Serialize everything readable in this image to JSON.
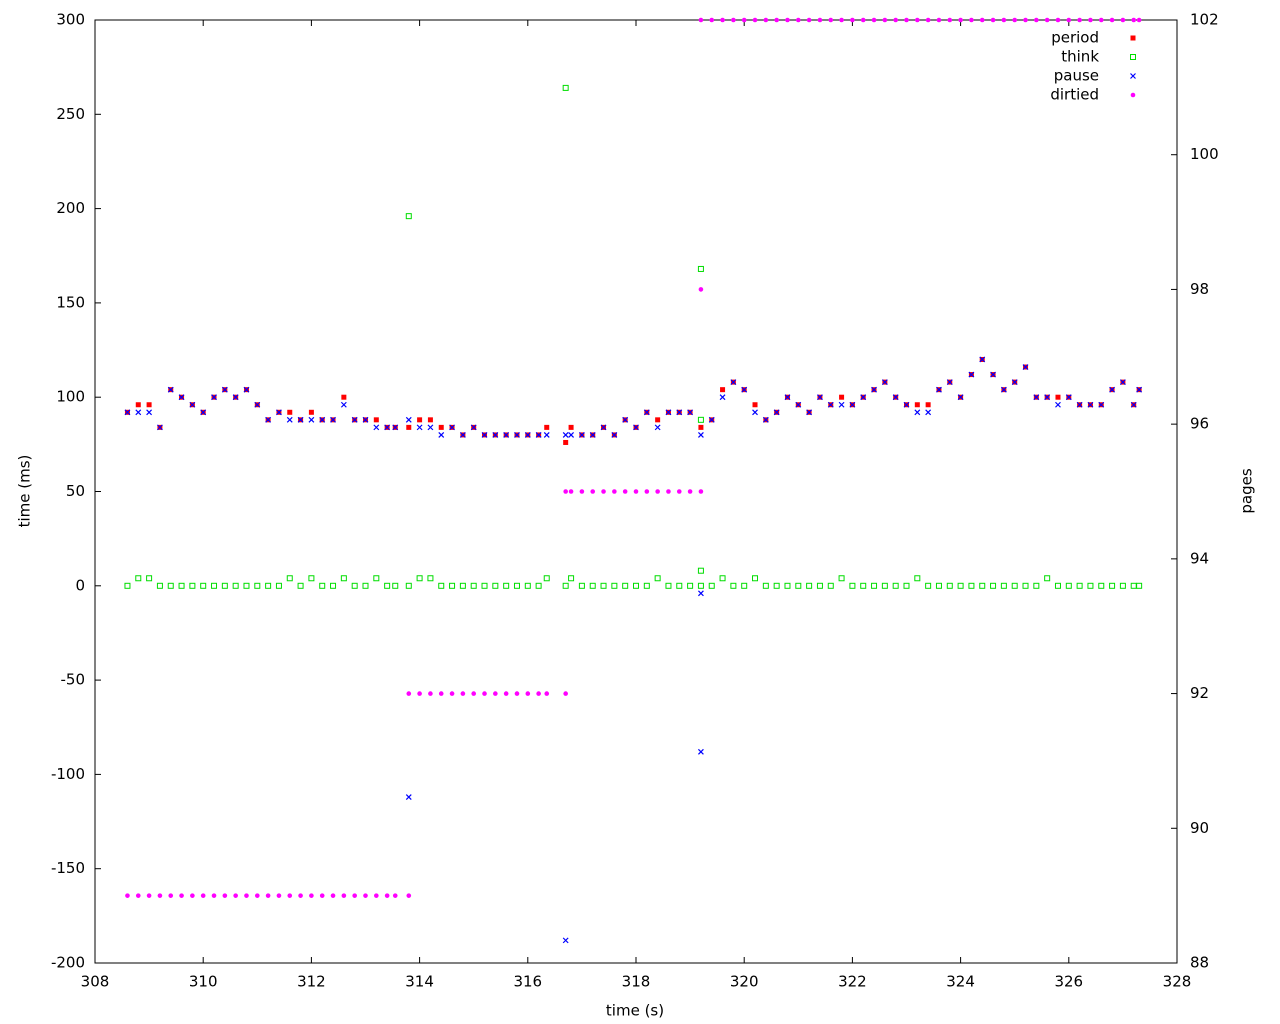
{
  "chart_data": {
    "type": "scatter",
    "xlabel": "time (s)",
    "ylabel": "time (ms)",
    "y2label": "pages",
    "xlim": [
      308,
      328
    ],
    "xticks": [
      308,
      310,
      312,
      314,
      316,
      318,
      320,
      322,
      324,
      326,
      328
    ],
    "ylim": [
      -200,
      300
    ],
    "yticks": [
      -200,
      -150,
      -100,
      -50,
      0,
      50,
      100,
      150,
      200,
      250,
      300
    ],
    "y2lim": [
      88,
      102
    ],
    "y2ticks": [
      88,
      90,
      92,
      94,
      96,
      98,
      100,
      102
    ],
    "grid": false,
    "legend": "top-right",
    "series": [
      {
        "name": "period",
        "color": "#ff0000",
        "marker": "filled-square",
        "x": [
          308.6,
          308.8,
          309.0,
          309.2,
          309.4,
          309.6,
          309.8,
          310.0,
          310.2,
          310.4,
          310.6,
          310.8,
          311.0,
          311.2,
          311.4,
          311.6,
          311.8,
          312.0,
          312.2,
          312.4,
          312.6,
          312.8,
          313.0,
          313.2,
          313.4,
          313.55,
          313.8,
          314.0,
          314.2,
          314.4,
          314.6,
          314.8,
          315.0,
          315.2,
          315.4,
          315.6,
          315.8,
          316.0,
          316.2,
          316.35,
          316.7,
          316.8,
          317.0,
          317.2,
          317.4,
          317.6,
          317.8,
          318.0,
          318.2,
          318.4,
          318.6,
          318.8,
          319.0,
          319.2,
          319.4,
          319.6,
          319.8,
          320.0,
          320.2,
          320.4,
          320.6,
          320.8,
          321.0,
          321.2,
          321.4,
          321.6,
          321.8,
          322.0,
          322.2,
          322.4,
          322.6,
          322.8,
          323.0,
          323.2,
          323.4,
          323.6,
          323.8,
          324.0,
          324.2,
          324.4,
          324.6,
          324.8,
          325.0,
          325.2,
          325.4,
          325.6,
          325.8,
          326.0,
          326.2,
          326.4,
          326.6,
          326.8,
          327.0,
          327.2,
          327.3
        ],
        "values": [
          92,
          96,
          96,
          84,
          104,
          100,
          96,
          92,
          100,
          104,
          100,
          104,
          96,
          88,
          92,
          92,
          88,
          92,
          88,
          88,
          100,
          88,
          88,
          88,
          84,
          84,
          84,
          88,
          88,
          84,
          84,
          80,
          84,
          80,
          80,
          80,
          80,
          80,
          80,
          84,
          76,
          84,
          80,
          80,
          84,
          80,
          88,
          84,
          92,
          88,
          92,
          92,
          92,
          84,
          88,
          104,
          108,
          104,
          96,
          88,
          92,
          100,
          96,
          92,
          100,
          96,
          100,
          96,
          100,
          104,
          108,
          100,
          96,
          96,
          96,
          104,
          108,
          100,
          112,
          120,
          112,
          104,
          108,
          116,
          100,
          100,
          100,
          100,
          96,
          96,
          96,
          104,
          108,
          96,
          104
        ]
      },
      {
        "name": "think",
        "color": "#00dd00",
        "marker": "open-square",
        "x": [
          308.6,
          308.8,
          309.0,
          309.2,
          309.4,
          309.6,
          309.8,
          310.0,
          310.2,
          310.4,
          310.6,
          310.8,
          311.0,
          311.2,
          311.4,
          311.6,
          311.8,
          312.0,
          312.2,
          312.4,
          312.6,
          312.8,
          313.0,
          313.2,
          313.4,
          313.55,
          313.8,
          314.0,
          314.2,
          314.4,
          314.6,
          314.8,
          315.0,
          315.2,
          315.4,
          315.6,
          315.8,
          316.0,
          316.2,
          316.35,
          316.7,
          316.8,
          317.0,
          317.2,
          317.4,
          317.6,
          317.8,
          318.0,
          318.2,
          318.4,
          318.6,
          318.8,
          319.0,
          319.2,
          319.4,
          319.6,
          319.8,
          320.0,
          320.2,
          320.4,
          320.6,
          320.8,
          321.0,
          321.2,
          321.4,
          321.6,
          321.8,
          322.0,
          322.2,
          322.4,
          322.6,
          322.8,
          323.0,
          323.2,
          323.4,
          323.6,
          323.8,
          324.0,
          324.2,
          324.4,
          324.6,
          324.8,
          325.0,
          325.2,
          325.4,
          325.6,
          325.8,
          326.0,
          326.2,
          326.4,
          326.6,
          326.8,
          327.0,
          327.2,
          327.3,
          313.8,
          316.7,
          319.2,
          319.2,
          319.2
        ],
        "values": [
          0,
          4,
          4,
          0,
          0,
          0,
          0,
          0,
          0,
          0,
          0,
          0,
          0,
          0,
          0,
          4,
          0,
          4,
          0,
          0,
          4,
          0,
          0,
          4,
          0,
          0,
          0,
          4,
          4,
          0,
          0,
          0,
          0,
          0,
          0,
          0,
          0,
          0,
          0,
          4,
          0,
          4,
          0,
          0,
          0,
          0,
          0,
          0,
          0,
          4,
          0,
          0,
          0,
          0,
          0,
          4,
          0,
          0,
          4,
          0,
          0,
          0,
          0,
          0,
          0,
          0,
          4,
          0,
          0,
          0,
          0,
          0,
          0,
          4,
          0,
          0,
          0,
          0,
          0,
          0,
          0,
          0,
          0,
          0,
          0,
          4,
          0,
          0,
          0,
          0,
          0,
          0,
          0,
          0,
          0,
          196,
          264,
          168,
          8,
          88
        ]
      },
      {
        "name": "pause",
        "color": "#0000ff",
        "marker": "cross",
        "x": [
          308.6,
          308.8,
          309.0,
          309.2,
          309.4,
          309.6,
          309.8,
          310.0,
          310.2,
          310.4,
          310.6,
          310.8,
          311.0,
          311.2,
          311.4,
          311.6,
          311.8,
          312.0,
          312.2,
          312.4,
          312.6,
          312.8,
          313.0,
          313.2,
          313.4,
          313.55,
          313.8,
          314.0,
          314.2,
          314.4,
          314.6,
          314.8,
          315.0,
          315.2,
          315.4,
          315.6,
          315.8,
          316.0,
          316.2,
          316.35,
          316.7,
          316.8,
          317.0,
          317.2,
          317.4,
          317.6,
          317.8,
          318.0,
          318.2,
          318.4,
          318.6,
          318.8,
          319.0,
          319.2,
          319.4,
          319.6,
          319.8,
          320.0,
          320.2,
          320.4,
          320.6,
          320.8,
          321.0,
          321.2,
          321.4,
          321.6,
          321.8,
          322.0,
          322.2,
          322.4,
          322.6,
          322.8,
          323.0,
          323.2,
          323.4,
          323.6,
          323.8,
          324.0,
          324.2,
          324.4,
          324.6,
          324.8,
          325.0,
          325.2,
          325.4,
          325.6,
          325.8,
          326.0,
          326.2,
          326.4,
          326.6,
          326.8,
          327.0,
          327.2,
          327.3,
          313.8,
          316.7,
          319.2,
          319.2
        ],
        "values": [
          92,
          92,
          92,
          84,
          104,
          100,
          96,
          92,
          100,
          104,
          100,
          104,
          96,
          88,
          92,
          88,
          88,
          88,
          88,
          88,
          96,
          88,
          88,
          84,
          84,
          84,
          88,
          84,
          84,
          80,
          84,
          80,
          84,
          80,
          80,
          80,
          80,
          80,
          80,
          80,
          80,
          80,
          80,
          80,
          84,
          80,
          88,
          84,
          92,
          84,
          92,
          92,
          92,
          80,
          88,
          100,
          108,
          104,
          92,
          88,
          92,
          100,
          96,
          92,
          100,
          96,
          96,
          96,
          100,
          104,
          108,
          100,
          96,
          92,
          92,
          104,
          108,
          100,
          112,
          120,
          112,
          104,
          108,
          116,
          100,
          100,
          96,
          100,
          96,
          96,
          96,
          104,
          108,
          96,
          104,
          -112,
          -188,
          -88,
          -4
        ]
      },
      {
        "name": "dirtied",
        "color": "#ff00ff",
        "marker": "dot",
        "axis": "y2",
        "x": [
          308.6,
          308.8,
          309.0,
          309.2,
          309.4,
          309.6,
          309.8,
          310.0,
          310.2,
          310.4,
          310.6,
          310.8,
          311.0,
          311.2,
          311.4,
          311.6,
          311.8,
          312.0,
          312.2,
          312.4,
          312.6,
          312.8,
          313.0,
          313.2,
          313.4,
          313.55,
          313.8,
          313.8,
          314.0,
          314.2,
          314.4,
          314.6,
          314.8,
          315.0,
          315.2,
          315.4,
          315.6,
          315.8,
          316.0,
          316.2,
          316.35,
          316.7,
          316.7,
          316.8,
          317.0,
          317.2,
          317.4,
          317.6,
          317.8,
          318.0,
          318.2,
          318.4,
          318.6,
          318.8,
          319.0,
          319.2,
          319.2,
          319.2,
          319.4,
          319.6,
          319.8,
          320.0,
          320.2,
          320.4,
          320.6,
          320.8,
          321.0,
          321.2,
          321.4,
          321.6,
          321.8,
          322.0,
          322.2,
          322.4,
          322.6,
          322.8,
          323.0,
          323.2,
          323.4,
          323.6,
          323.8,
          324.0,
          324.2,
          324.4,
          324.6,
          324.8,
          325.0,
          325.2,
          325.4,
          325.6,
          325.8,
          326.0,
          326.2,
          326.4,
          326.6,
          326.8,
          327.0,
          327.2,
          327.3
        ],
        "values": [
          89,
          89,
          89,
          89,
          89,
          89,
          89,
          89,
          89,
          89,
          89,
          89,
          89,
          89,
          89,
          89,
          89,
          89,
          89,
          89,
          89,
          89,
          89,
          89,
          89,
          89,
          89,
          92,
          92,
          92,
          92,
          92,
          92,
          92,
          92,
          92,
          92,
          92,
          92,
          92,
          92,
          92,
          95,
          95,
          95,
          95,
          95,
          95,
          95,
          95,
          95,
          95,
          95,
          95,
          95,
          98,
          95,
          102,
          102,
          102,
          102,
          102,
          102,
          102,
          102,
          102,
          102,
          102,
          102,
          102,
          102,
          102,
          102,
          102,
          102,
          102,
          102,
          102,
          102,
          102,
          102,
          102,
          102,
          102,
          102,
          102,
          102,
          102,
          102,
          102,
          102,
          102,
          102,
          102,
          102,
          102,
          102,
          102,
          102
        ]
      }
    ]
  }
}
